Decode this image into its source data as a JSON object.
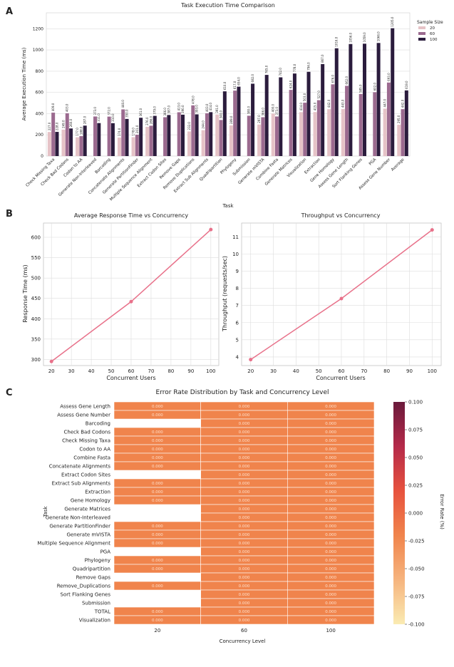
{
  "panels": [
    "A",
    "B",
    "C"
  ],
  "chart_data": [
    {
      "type": "bar",
      "title": "Task Execution Time Comparison",
      "xlabel": "Task",
      "ylabel": "Average Execution Time (ms)",
      "ylim": [
        0,
        1350
      ],
      "yticks": [
        0,
        200,
        400,
        600,
        800,
        1000,
        1200
      ],
      "grid": true,
      "legend_title": "Sample Size",
      "legend_position": "right",
      "colors": [
        "#e6c3c7",
        "#9b6a8f",
        "#2b1c3d"
      ],
      "categories": [
        "Check Missing Taxa",
        "Check Bad Codons",
        "Codon to AA",
        "Generate Non-Interleaved",
        "Barcoding",
        "Concatenate Alignments",
        "Generate PartitionFinder",
        "Multiple Sequence Alignment",
        "Extract Codon Sites",
        "Remove Gaps",
        "Remove Duplications",
        "Extract Sub Alignments",
        "Quadripartition",
        "Phylogeny",
        "Submission",
        "Generate mVISTA",
        "Combine Fasta",
        "Generate Matrices",
        "Visualization",
        "Extraction",
        "Gene Homology",
        "Assess Gene Length",
        "Sort Flanking Genes",
        "PGA",
        "Assess Gene Number",
        "Average"
      ],
      "series": [
        {
          "name": "20",
          "values": [
            227,
            249,
            177,
            null,
            null,
            174,
            178,
            276,
            null,
            null,
            232,
            244,
            391,
            289,
            null,
            297,
            400,
            null,
            414,
            415,
            442,
            443,
            null,
            null,
            447,
            295
          ]
        },
        {
          "name": "60",
          "values": [
            409,
            403,
            188,
            373,
            372,
            440,
            201,
            286,
            366,
            413,
            478,
            403,
            340,
            617,
            380,
            366,
            373,
            624,
            503,
            527,
            676,
            662,
            585,
            602,
            693,
            442
          ]
        },
        {
          "name": "100",
          "values": [
            228,
            260,
            287,
            311,
            310,
            350,
            361,
            379,
            387,
            390,
            393,
            414,
            610,
            654,
            682,
            765,
            742,
            778,
            794,
            867,
            1016,
            1056,
            1059,
            1066,
            1205,
            619
          ]
        }
      ]
    },
    {
      "type": "line",
      "title": "Average Response Time vs Concurrency",
      "xlabel": "Concurrent Users",
      "ylabel": "Response Time (ms)",
      "x": [
        20,
        60,
        100
      ],
      "y": [
        295,
        442,
        619
      ],
      "xlim": [
        16,
        104
      ],
      "ylim": [
        285,
        635
      ],
      "xticks": [
        20,
        30,
        40,
        50,
        60,
        70,
        80,
        90,
        100
      ],
      "yticks": [
        300,
        350,
        400,
        450,
        500,
        550,
        600
      ],
      "color": "#e8718a",
      "grid": true
    },
    {
      "type": "line",
      "title": "Throughput vs Concurrency",
      "xlabel": "Concurrent Users",
      "ylabel": "Throughput (requests/sec)",
      "x": [
        20,
        60,
        100
      ],
      "y": [
        3.85,
        7.4,
        11.4
      ],
      "xlim": [
        16,
        104
      ],
      "ylim": [
        3.5,
        11.8
      ],
      "xticks": [
        20,
        30,
        40,
        50,
        60,
        70,
        80,
        90,
        100
      ],
      "yticks": [
        4,
        5,
        6,
        7,
        8,
        9,
        10,
        11
      ],
      "color": "#e8718a",
      "grid": true
    },
    {
      "type": "heatmap",
      "title": "Error Rate Distribution by Task and Concurrency Level",
      "xlabel": "Concurrency Level",
      "ylabel": "Task",
      "columns": [
        "20",
        "60",
        "100"
      ],
      "rows": [
        "Assess Gene Length",
        "Assess Gene Number",
        "Barcoding",
        "Check Bad Codons",
        "Check Missing Taxa",
        "Codon to AA",
        "Combine Fasta",
        "Concatenate Alignments",
        "Extract Codon Sites",
        "Extract Sub Alignments",
        "Extraction",
        "Gene Homology",
        "Generate Matrices",
        "Generate Non-Interleaved",
        "Generate PartitionFinder",
        "Generate mVISTA",
        "Multiple Sequence Alignment",
        "PGA",
        "Phylogeny",
        "Quadripartition",
        "Remove Gaps",
        "Remove_Duplications",
        "Sort Flanking Genes ",
        "Submission",
        "TOTAL",
        "Visualization"
      ],
      "values": [
        [
          0,
          0,
          0
        ],
        [
          0,
          0,
          0
        ],
        [
          null,
          0,
          0
        ],
        [
          0,
          0,
          0
        ],
        [
          0,
          0,
          0
        ],
        [
          0,
          0,
          0
        ],
        [
          0,
          0,
          0
        ],
        [
          0,
          0,
          0
        ],
        [
          null,
          0,
          0
        ],
        [
          0,
          0,
          0
        ],
        [
          0,
          0,
          0
        ],
        [
          0,
          0,
          0
        ],
        [
          null,
          0,
          0
        ],
        [
          null,
          0,
          0
        ],
        [
          0,
          0,
          0
        ],
        [
          0,
          0,
          0
        ],
        [
          0,
          0,
          0
        ],
        [
          null,
          0,
          0
        ],
        [
          0,
          0,
          0
        ],
        [
          0,
          0,
          0
        ],
        [
          null,
          0,
          0
        ],
        [
          0,
          0,
          0
        ],
        [
          null,
          0,
          0
        ],
        [
          null,
          0,
          0
        ],
        [
          0,
          0,
          0
        ],
        [
          0,
          0,
          0
        ]
      ],
      "cell_labels": "0.000",
      "cell_color": "#f0844c",
      "colorbar_label": "Error Rate (%)",
      "colorbar_range": [
        -0.1,
        0.1
      ],
      "colorbar_ticks": [
        "0.100",
        "0.075",
        "0.050",
        "0.025",
        "0.000",
        "-0.025",
        "-0.050",
        "-0.075",
        "-0.100"
      ],
      "colorbar_colors": [
        "#6a1a3b",
        "#b52a4a",
        "#e7523e",
        "#f0844c",
        "#f6b47e",
        "#faebb2"
      ]
    }
  ]
}
